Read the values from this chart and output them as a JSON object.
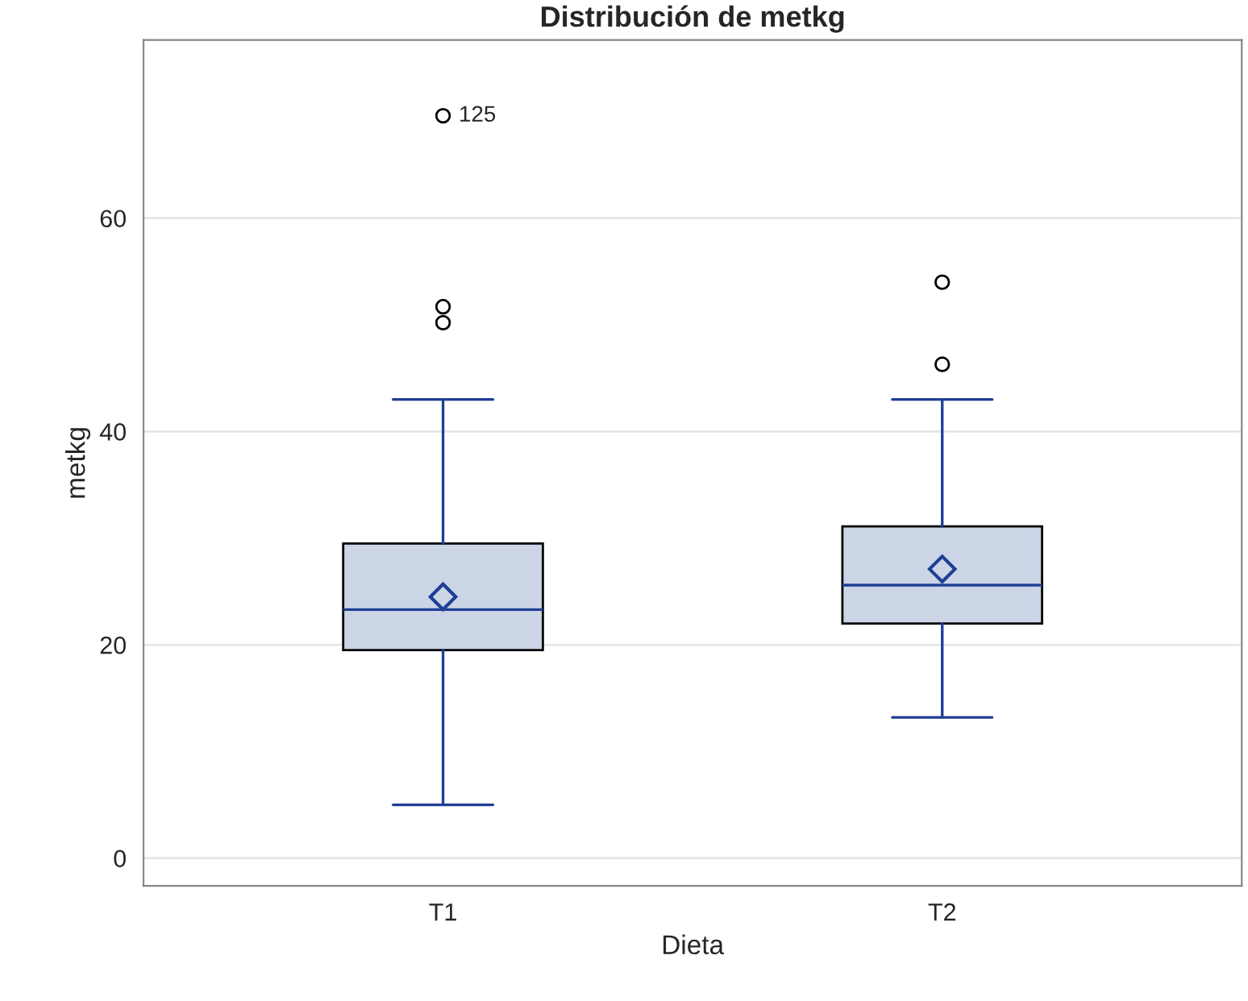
{
  "chart_data": {
    "type": "box",
    "title": "Distribución de metkg",
    "xlabel": "Dieta",
    "ylabel": "metkg",
    "categories": [
      "T1",
      "T2"
    ],
    "boxes": [
      {
        "low": 5.0,
        "q1": 19.5,
        "median": 23.3,
        "q3": 29.5,
        "high": 43.0,
        "mean": 24.5,
        "outliers": [
          69.6,
          51.7,
          50.2
        ]
      },
      {
        "low": 13.2,
        "q1": 22.0,
        "median": 25.6,
        "q3": 31.1,
        "high": 43.0,
        "mean": 27.1,
        "outliers": [
          54.0,
          46.3
        ]
      }
    ],
    "color": "#cbd5e6",
    "ylim": [
      -2.6,
      76.7
    ],
    "yticks": [
      0,
      20,
      40,
      60
    ],
    "grid": "y",
    "annotations": [
      "125"
    ]
  }
}
